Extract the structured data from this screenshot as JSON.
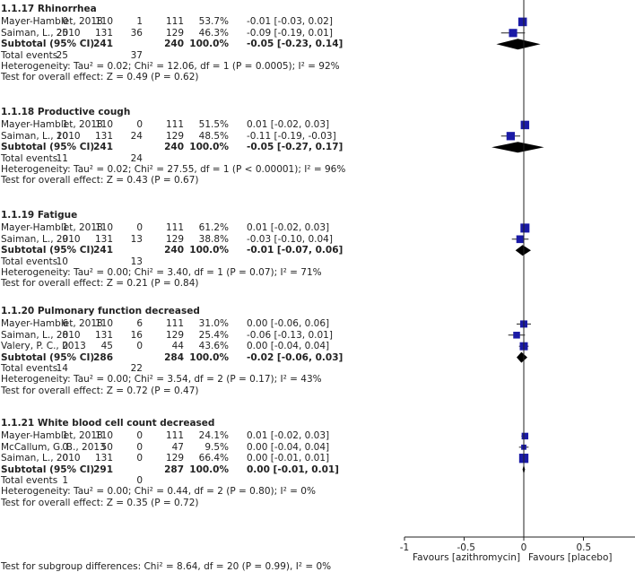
{
  "chart_data": {
    "type": "forest",
    "x_axis": {
      "range": [
        -1,
        1
      ],
      "ticks": [
        "-1",
        "-0.5",
        "0",
        "0.5"
      ],
      "label_left": "Favours [azithromycin]",
      "label_right": "Favours [placebo]"
    },
    "subgroups": [
      {
        "title": "1.1.17 Rhinorrhea",
        "studies": [
          {
            "name": "Mayer-Hamblet, 2018",
            "e1": "0",
            "n1": "110",
            "e2": "1",
            "n2": "111",
            "weight": "53.7%",
            "ci_text": "-0.01 [-0.03, 0.02]",
            "est": -0.01,
            "lo": -0.03,
            "hi": 0.02,
            "w": 53.7
          },
          {
            "name": "Saiman, L., 2010",
            "e1": "25",
            "n1": "131",
            "e2": "36",
            "n2": "129",
            "weight": "46.3%",
            "ci_text": "-0.09 [-0.19, 0.01]",
            "est": -0.09,
            "lo": -0.19,
            "hi": 0.01,
            "w": 46.3
          }
        ],
        "subtotal": {
          "label": "Subtotal (95% CI)",
          "n1": "241",
          "n2": "240",
          "weight": "100.0%",
          "ci_text": "-0.05 [-0.23, 0.14]",
          "est": -0.05,
          "lo": -0.23,
          "hi": 0.14
        },
        "total_events": {
          "label": "Total events",
          "e1": "25",
          "e2": "37"
        },
        "heterogeneity": "Heterogeneity: Tau² = 0.02; Chi² = 12.06, df = 1 (P = 0.0005); I² = 92%",
        "overall_effect": "Test for overall effect: Z = 0.49 (P = 0.62)"
      },
      {
        "title": "1.1.18 Productive cough",
        "studies": [
          {
            "name": "Mayer-Hamblet, 2018",
            "e1": "1",
            "n1": "110",
            "e2": "0",
            "n2": "111",
            "weight": "51.5%",
            "ci_text": "0.01 [-0.02, 0.03]",
            "est": 0.01,
            "lo": -0.02,
            "hi": 0.03,
            "w": 51.5
          },
          {
            "name": "Saiman, L., 2010",
            "e1": "10",
            "n1": "131",
            "e2": "24",
            "n2": "129",
            "weight": "48.5%",
            "ci_text": "-0.11 [-0.19, -0.03]",
            "est": -0.11,
            "lo": -0.19,
            "hi": -0.03,
            "w": 48.5
          }
        ],
        "subtotal": {
          "label": "Subtotal (95% CI)",
          "n1": "241",
          "n2": "240",
          "weight": "100.0%",
          "ci_text": "-0.05 [-0.27, 0.17]",
          "est": -0.05,
          "lo": -0.27,
          "hi": 0.17
        },
        "total_events": {
          "label": "Total events",
          "e1": "11",
          "e2": "24"
        },
        "heterogeneity": "Heterogeneity: Tau² = 0.02; Chi² = 27.55, df = 1 (P < 0.00001); I² = 96%",
        "overall_effect": "Test for overall effect: Z = 0.43 (P = 0.67)"
      },
      {
        "title": "1.1.19 Fatigue",
        "studies": [
          {
            "name": "Mayer-Hamblet, 2018",
            "e1": "1",
            "n1": "110",
            "e2": "0",
            "n2": "111",
            "weight": "61.2%",
            "ci_text": "0.01 [-0.02, 0.03]",
            "est": 0.01,
            "lo": -0.02,
            "hi": 0.03,
            "w": 61.2
          },
          {
            "name": "Saiman, L., 2010",
            "e1": "9",
            "n1": "131",
            "e2": "13",
            "n2": "129",
            "weight": "38.8%",
            "ci_text": "-0.03 [-0.10, 0.04]",
            "est": -0.03,
            "lo": -0.1,
            "hi": 0.04,
            "w": 38.8
          }
        ],
        "subtotal": {
          "label": "Subtotal (95% CI)",
          "n1": "241",
          "n2": "240",
          "weight": "100.0%",
          "ci_text": "-0.01 [-0.07, 0.06]",
          "est": -0.01,
          "lo": -0.07,
          "hi": 0.06
        },
        "total_events": {
          "label": "Total events",
          "e1": "10",
          "e2": "13"
        },
        "heterogeneity": "Heterogeneity: Tau² = 0.00; Chi² = 3.40, df = 1 (P = 0.07); I² = 71%",
        "overall_effect": "Test for overall effect: Z = 0.21 (P = 0.84)"
      },
      {
        "title": "1.1.20 Pulmonary function decreased",
        "studies": [
          {
            "name": "Mayer-Hamblet, 2018",
            "e1": "6",
            "n1": "110",
            "e2": "6",
            "n2": "111",
            "weight": "31.0%",
            "ci_text": "0.00 [-0.06, 0.06]",
            "est": 0.0,
            "lo": -0.06,
            "hi": 0.06,
            "w": 31.0
          },
          {
            "name": "Saiman, L., 2010",
            "e1": "8",
            "n1": "131",
            "e2": "16",
            "n2": "129",
            "weight": "25.4%",
            "ci_text": "-0.06 [-0.13, 0.01]",
            "est": -0.06,
            "lo": -0.13,
            "hi": 0.01,
            "w": 25.4
          },
          {
            "name": "Valery, P. C., 2013",
            "e1": "0",
            "n1": "45",
            "e2": "0",
            "n2": "44",
            "weight": "43.6%",
            "ci_text": "0.00 [-0.04, 0.04]",
            "est": 0.0,
            "lo": -0.04,
            "hi": 0.04,
            "w": 43.6
          }
        ],
        "subtotal": {
          "label": "Subtotal (95% CI)",
          "n1": "286",
          "n2": "284",
          "weight": "100.0%",
          "ci_text": "-0.02 [-0.06, 0.03]",
          "est": -0.02,
          "lo": -0.06,
          "hi": 0.03
        },
        "total_events": {
          "label": "Total events",
          "e1": "14",
          "e2": "22"
        },
        "heterogeneity": "Heterogeneity: Tau² = 0.00; Chi² = 3.54, df = 2 (P = 0.17); I² = 43%",
        "overall_effect": "Test for overall effect: Z = 0.72 (P = 0.47)"
      },
      {
        "title": "1.1.21 White blood cell count decreased",
        "studies": [
          {
            "name": "Mayer-Hamblet, 2018",
            "e1": "1",
            "n1": "110",
            "e2": "0",
            "n2": "111",
            "weight": "24.1%",
            "ci_text": "0.01 [-0.02, 0.03]",
            "est": 0.01,
            "lo": -0.02,
            "hi": 0.03,
            "w": 24.1
          },
          {
            "name": "McCallum, G. B., 2013",
            "e1": "0",
            "n1": "50",
            "e2": "0",
            "n2": "47",
            "weight": "9.5%",
            "ci_text": "0.00 [-0.04, 0.04]",
            "est": 0.0,
            "lo": -0.04,
            "hi": 0.04,
            "w": 9.5
          },
          {
            "name": "Saiman, L., 2010",
            "e1": "0",
            "n1": "131",
            "e2": "0",
            "n2": "129",
            "weight": "66.4%",
            "ci_text": "0.00 [-0.01, 0.01]",
            "est": 0.0,
            "lo": -0.01,
            "hi": 0.01,
            "w": 66.4
          }
        ],
        "subtotal": {
          "label": "Subtotal (95% CI)",
          "n1": "291",
          "n2": "287",
          "weight": "100.0%",
          "ci_text": "0.00 [-0.01, 0.01]",
          "est": 0.0,
          "lo": -0.01,
          "hi": 0.01
        },
        "total_events": {
          "label": "Total events",
          "e1": "1",
          "e2": "0"
        },
        "heterogeneity": "Heterogeneity: Tau² = 0.00; Chi² = 0.44, df = 2 (P = 0.80); I² = 0%",
        "overall_effect": "Test for overall effect: Z = 0.35 (P = 0.72)"
      }
    ],
    "subgroup_test": "Test for subgroup differences: Chi² = 8.64, df = 20 (P = 0.99), I² = 0%"
  },
  "colors": {
    "study_marker": "#1a1aa6",
    "diamond": "#000000",
    "line": "#222222"
  }
}
